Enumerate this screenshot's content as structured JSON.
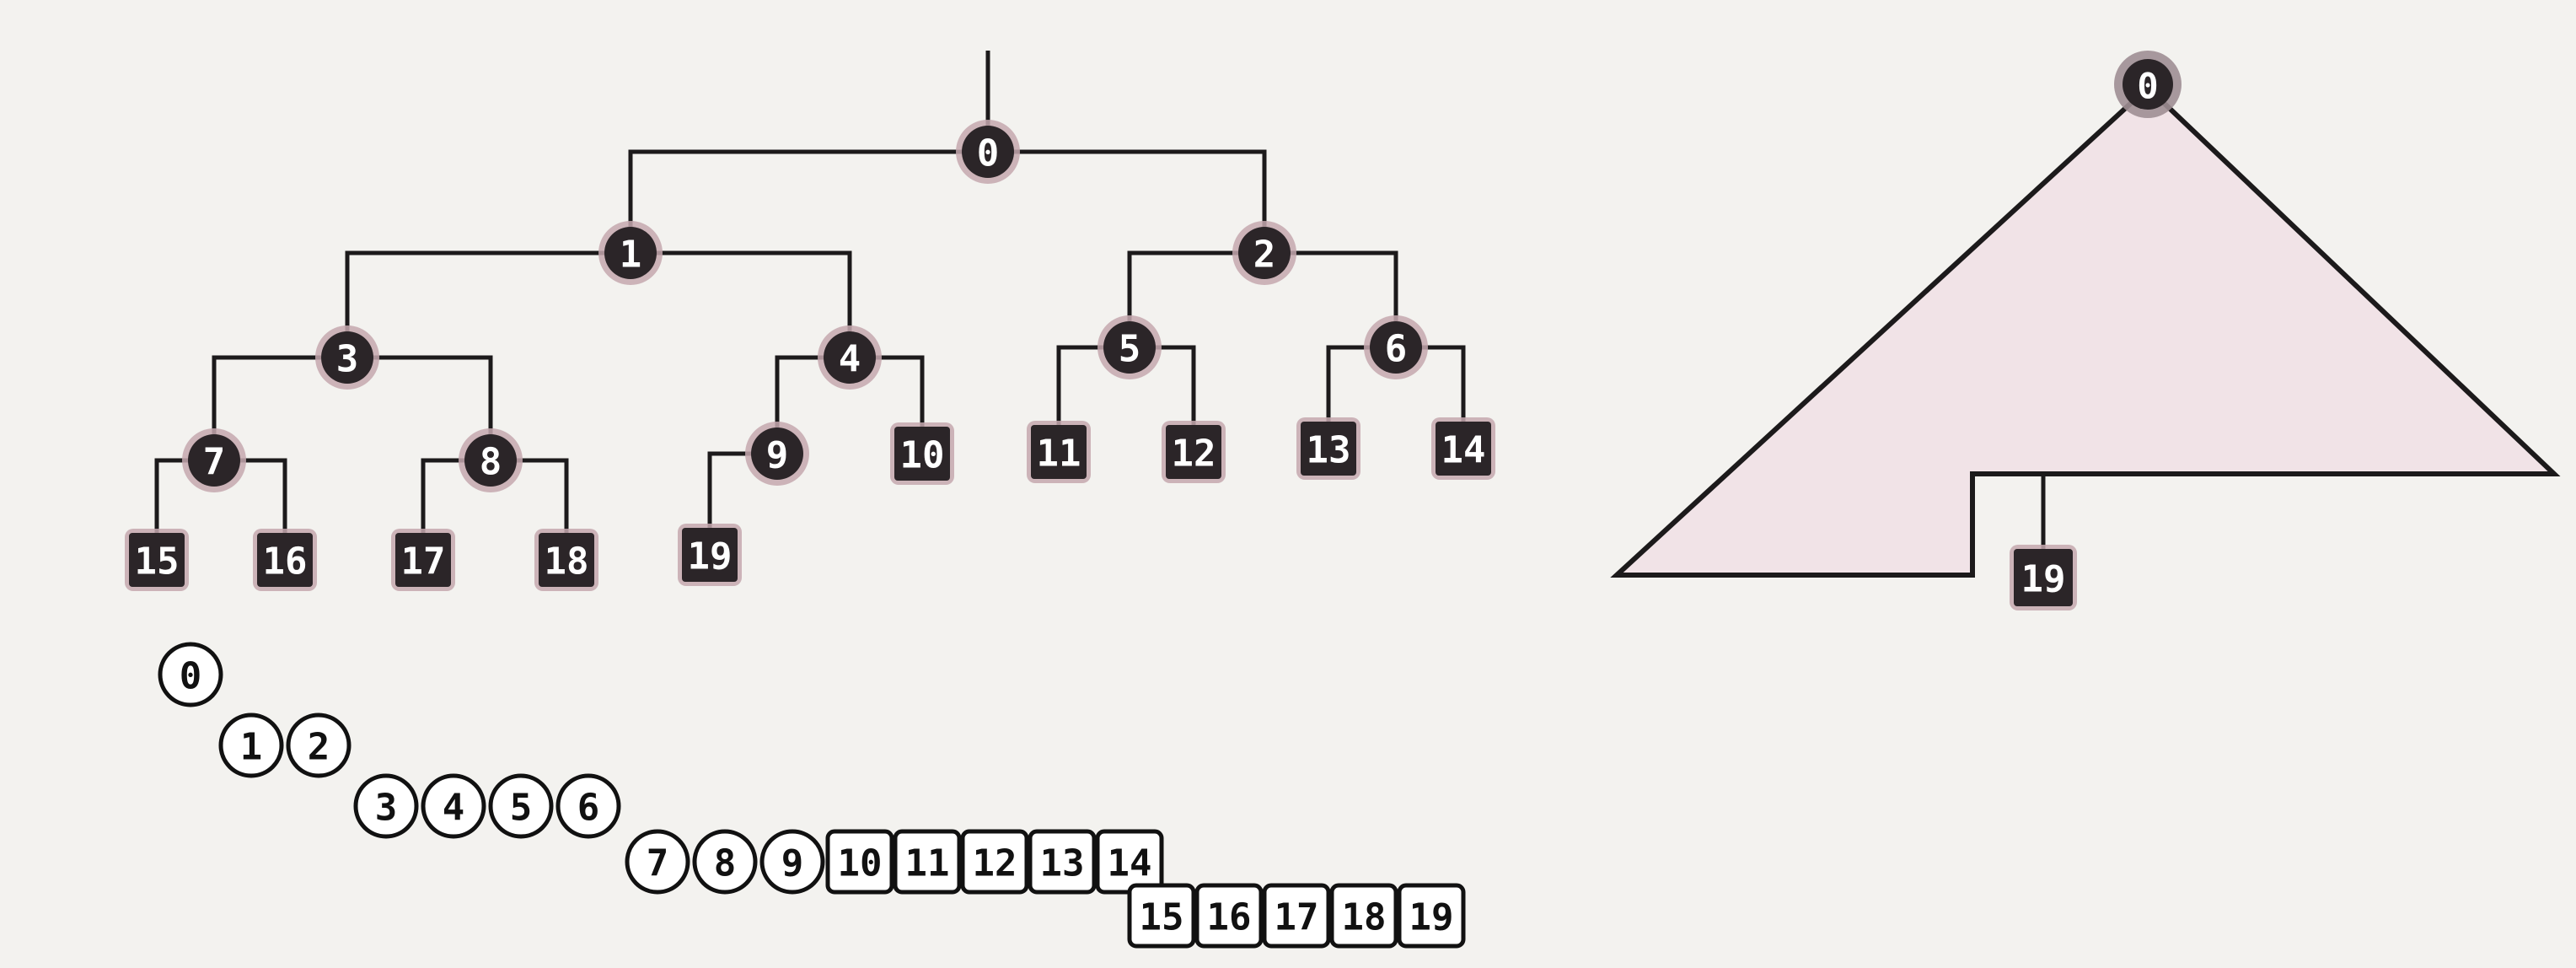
{
  "colors": {
    "background": "#f3f2ef",
    "node_fill": "#2b2528",
    "node_halo": "#c4a8ae",
    "node_text": "#ffffff",
    "edge": "#1c1a1b",
    "triangle_fill": "#f1e3e7",
    "array_fill": "#ffffff",
    "array_stroke": "#111111",
    "array_text": "#111111"
  },
  "tree": {
    "root": "0",
    "nodes": [
      {
        "id": "0",
        "label": "0",
        "shape": "circle"
      },
      {
        "id": "1",
        "label": "1",
        "shape": "circle",
        "parent": "0"
      },
      {
        "id": "2",
        "label": "2",
        "shape": "circle",
        "parent": "0"
      },
      {
        "id": "3",
        "label": "3",
        "shape": "circle",
        "parent": "1"
      },
      {
        "id": "4",
        "label": "4",
        "shape": "circle",
        "parent": "1"
      },
      {
        "id": "5",
        "label": "5",
        "shape": "circle",
        "parent": "2"
      },
      {
        "id": "6",
        "label": "6",
        "shape": "circle",
        "parent": "2"
      },
      {
        "id": "7",
        "label": "7",
        "shape": "circle",
        "parent": "3"
      },
      {
        "id": "8",
        "label": "8",
        "shape": "circle",
        "parent": "3"
      },
      {
        "id": "9",
        "label": "9",
        "shape": "circle",
        "parent": "4"
      },
      {
        "id": "10",
        "label": "10",
        "shape": "square",
        "parent": "4"
      },
      {
        "id": "11",
        "label": "11",
        "shape": "square",
        "parent": "5"
      },
      {
        "id": "12",
        "label": "12",
        "shape": "square",
        "parent": "5"
      },
      {
        "id": "13",
        "label": "13",
        "shape": "square",
        "parent": "6"
      },
      {
        "id": "14",
        "label": "14",
        "shape": "square",
        "parent": "6"
      },
      {
        "id": "15",
        "label": "15",
        "shape": "square",
        "parent": "7"
      },
      {
        "id": "16",
        "label": "16",
        "shape": "square",
        "parent": "7"
      },
      {
        "id": "17",
        "label": "17",
        "shape": "square",
        "parent": "8"
      },
      {
        "id": "18",
        "label": "18",
        "shape": "square",
        "parent": "8"
      },
      {
        "id": "19",
        "label": "19",
        "shape": "square",
        "parent": "9"
      }
    ]
  },
  "array_levels": [
    [
      "0"
    ],
    [
      "1",
      "2"
    ],
    [
      "3",
      "4",
      "5",
      "6"
    ],
    [
      "7",
      "8",
      "9",
      "10",
      "11",
      "12",
      "13",
      "14"
    ],
    [
      "15",
      "16",
      "17",
      "18",
      "19"
    ]
  ],
  "triangle": {
    "top_label": "0",
    "bottom_label": "19"
  }
}
